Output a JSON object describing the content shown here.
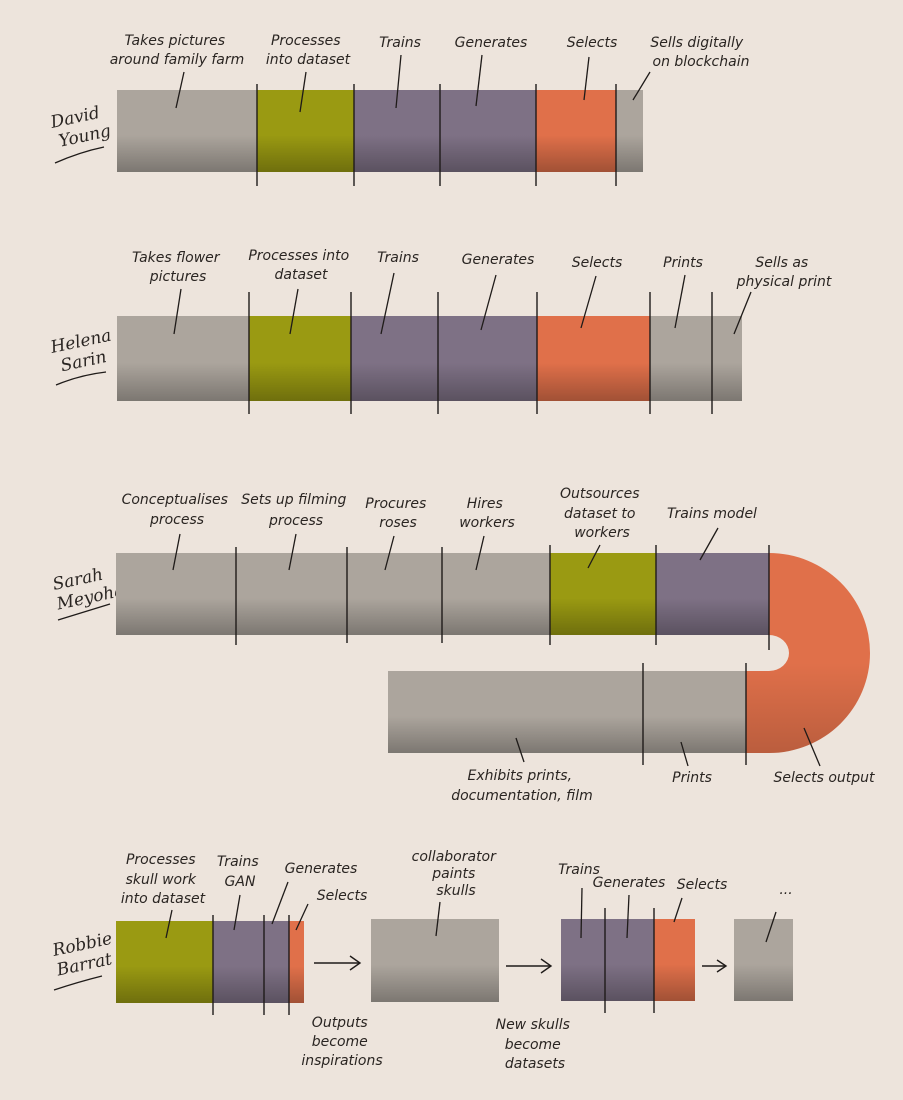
{
  "colors": {
    "grey": "#aca59d",
    "green": "#9a9a12",
    "purple": "#7e7185",
    "orange": "#e0704a",
    "background": "#ede4dc"
  },
  "artists": [
    {
      "name_lines": [
        "David",
        "Young"
      ],
      "steps": [
        {
          "label": [
            "Takes pictures",
            "around family farm"
          ],
          "color": "grey"
        },
        {
          "label": [
            "Processes",
            "into dataset"
          ],
          "color": "green"
        },
        {
          "label": [
            "Trains"
          ],
          "color": "purple"
        },
        {
          "label": [
            "Generates"
          ],
          "color": "purple"
        },
        {
          "label": [
            "Selects"
          ],
          "color": "orange"
        },
        {
          "label": [
            "Sells digitally",
            "on blockchain"
          ],
          "color": "grey"
        }
      ]
    },
    {
      "name_lines": [
        "Helena",
        "Sarin"
      ],
      "steps": [
        {
          "label": [
            "Takes flower",
            "pictures"
          ],
          "color": "grey"
        },
        {
          "label": [
            "Processes into",
            "dataset"
          ],
          "color": "green"
        },
        {
          "label": [
            "Trains"
          ],
          "color": "purple"
        },
        {
          "label": [
            "Generates"
          ],
          "color": "purple"
        },
        {
          "label": [
            "Selects"
          ],
          "color": "orange"
        },
        {
          "label": [
            "Prints"
          ],
          "color": "grey"
        },
        {
          "label": [
            "Sells as",
            "physical print"
          ],
          "color": "grey"
        }
      ]
    },
    {
      "name_lines": [
        "Sarah",
        "Meyohas"
      ],
      "steps": [
        {
          "label": [
            "Conceptualises",
            "process"
          ],
          "color": "grey"
        },
        {
          "label": [
            "Sets up filming",
            "process"
          ],
          "color": "grey"
        },
        {
          "label": [
            "Procures",
            "roses"
          ],
          "color": "grey"
        },
        {
          "label": [
            "Hires",
            "workers"
          ],
          "color": "grey"
        },
        {
          "label": [
            "Outsources",
            "dataset to",
            "workers"
          ],
          "color": "green"
        },
        {
          "label": [
            "Trains model"
          ],
          "color": "purple"
        },
        {
          "label": [
            "Selects output"
          ],
          "color": "orange"
        },
        {
          "label": [
            "Prints"
          ],
          "color": "grey"
        },
        {
          "label": [
            "Exhibits prints,",
            "documentation, film"
          ],
          "color": "grey"
        }
      ]
    },
    {
      "name_lines": [
        "Robbie",
        "Barrat"
      ],
      "steps": [
        {
          "label": [
            "Processes",
            "skull work",
            "into dataset"
          ],
          "color": "green"
        },
        {
          "label": [
            "Trains",
            "GAN"
          ],
          "color": "purple"
        },
        {
          "label": [
            "Generates"
          ],
          "color": "purple"
        },
        {
          "label": [
            "Selects"
          ],
          "color": "orange"
        },
        {
          "label": [
            "collaborator",
            "paints",
            "skulls"
          ],
          "color": "grey"
        },
        {
          "label": [
            "Trains"
          ],
          "color": "purple"
        },
        {
          "label": [
            "Generates"
          ],
          "color": "purple"
        },
        {
          "label": [
            "Selects"
          ],
          "color": "orange"
        },
        {
          "label": [
            "..."
          ],
          "color": "grey"
        }
      ],
      "notes": [
        [
          "Outputs",
          "become",
          "inspirations"
        ],
        [
          "New skulls",
          "become",
          "datasets"
        ]
      ]
    }
  ]
}
